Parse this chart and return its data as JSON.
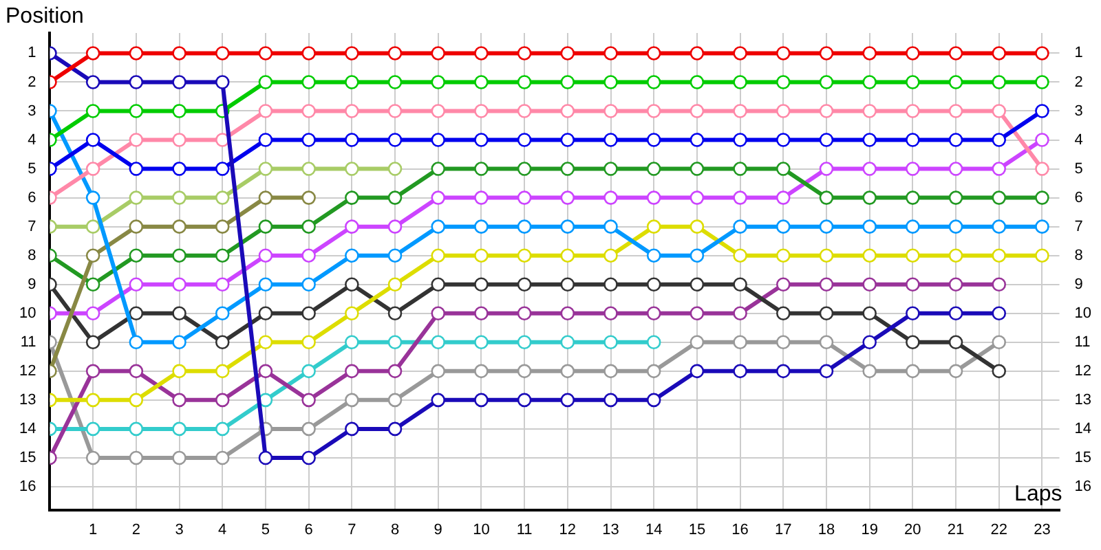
{
  "chart_data": {
    "type": "line",
    "xlabel": "Laps",
    "ylabel": "Position",
    "x": [
      0,
      1,
      2,
      3,
      4,
      5,
      6,
      7,
      8,
      9,
      10,
      11,
      12,
      13,
      14,
      15,
      16,
      17,
      18,
      19,
      20,
      21,
      22,
      23
    ],
    "xlim": [
      0,
      23.4
    ],
    "xticks": [
      1,
      2,
      3,
      4,
      5,
      6,
      7,
      8,
      9,
      10,
      11,
      12,
      13,
      14,
      15,
      16,
      17,
      18,
      19,
      20,
      21,
      22,
      23
    ],
    "ylim": [
      16.8,
      0.3
    ],
    "yticks": [
      1,
      2,
      3,
      4,
      5,
      6,
      7,
      8,
      9,
      10,
      11,
      12,
      13,
      14,
      15,
      16
    ],
    "y2lim": [
      16.8,
      0.3
    ],
    "y2ticks": [
      1,
      2,
      3,
      4,
      5,
      6,
      7,
      8,
      9,
      10,
      11,
      12,
      13,
      14,
      15,
      16
    ],
    "grid": true,
    "legend": false,
    "marker": "circle",
    "line_style": "solid",
    "series": [
      {
        "color": "#ee0000",
        "values": [
          2,
          1,
          1,
          1,
          1,
          1,
          1,
          1,
          1,
          1,
          1,
          1,
          1,
          1,
          1,
          1,
          1,
          1,
          1,
          1,
          1,
          1,
          1,
          1
        ]
      },
      {
        "color": "#1a0ab8",
        "values": [
          1,
          2,
          2,
          2,
          2,
          15,
          15,
          14,
          14,
          13,
          13,
          13,
          13,
          13,
          13,
          12,
          12,
          12,
          12,
          11,
          10,
          10,
          10,
          null
        ]
      },
      {
        "color": "#00cc00",
        "values": [
          4,
          3,
          3,
          3,
          3,
          2,
          2,
          2,
          2,
          2,
          2,
          2,
          2,
          2,
          2,
          2,
          2,
          2,
          2,
          2,
          2,
          2,
          2,
          2
        ]
      },
      {
        "color": "#0000ee",
        "values": [
          5,
          4,
          5,
          5,
          5,
          4,
          4,
          4,
          4,
          4,
          4,
          4,
          4,
          4,
          4,
          4,
          4,
          4,
          4,
          4,
          4,
          4,
          4,
          3
        ]
      },
      {
        "color": "#ff88a8",
        "values": [
          6,
          5,
          4,
          4,
          4,
          3,
          3,
          3,
          3,
          3,
          3,
          3,
          3,
          3,
          3,
          3,
          3,
          3,
          3,
          3,
          3,
          3,
          3,
          5
        ]
      },
      {
        "color": "#0099ff",
        "values": [
          3,
          6,
          11,
          11,
          10,
          9,
          9,
          8,
          8,
          7,
          7,
          7,
          7,
          7,
          8,
          8,
          7,
          7,
          7,
          7,
          7,
          7,
          7,
          7
        ]
      },
      {
        "color": "#dddd00",
        "values": [
          13,
          13,
          13,
          12,
          12,
          11,
          11,
          10,
          9,
          8,
          8,
          8,
          8,
          8,
          7,
          7,
          8,
          8,
          8,
          8,
          8,
          8,
          8,
          8
        ]
      },
      {
        "color": "#a8cc66",
        "values": [
          7,
          7,
          6,
          6,
          6,
          5,
          5,
          5,
          5,
          null,
          null,
          null,
          null,
          null,
          null,
          null,
          null,
          null,
          null,
          null,
          null,
          null,
          null,
          null
        ]
      },
      {
        "color": "#888844",
        "values": [
          12,
          8,
          7,
          7,
          7,
          6,
          6,
          null,
          null,
          null,
          null,
          null,
          null,
          null,
          null,
          null,
          null,
          null,
          null,
          null,
          null,
          null,
          null,
          null
        ]
      },
      {
        "color": "#229922",
        "values": [
          8,
          9,
          8,
          8,
          8,
          7,
          7,
          6,
          6,
          5,
          5,
          5,
          5,
          5,
          5,
          5,
          5,
          5,
          6,
          6,
          6,
          6,
          6,
          6
        ]
      },
      {
        "color": "#cc44ff",
        "values": [
          10,
          10,
          9,
          9,
          9,
          8,
          8,
          7,
          7,
          6,
          6,
          6,
          6,
          6,
          6,
          6,
          6,
          6,
          5,
          5,
          5,
          5,
          5,
          4
        ]
      },
      {
        "color": "#333333",
        "values": [
          9,
          11,
          10,
          10,
          11,
          10,
          10,
          9,
          10,
          9,
          9,
          9,
          9,
          9,
          9,
          9,
          9,
          10,
          10,
          10,
          11,
          11,
          12,
          null
        ]
      },
      {
        "color": "#993399",
        "values": [
          15,
          12,
          12,
          13,
          13,
          12,
          13,
          12,
          12,
          10,
          10,
          10,
          10,
          10,
          10,
          10,
          10,
          9,
          9,
          9,
          9,
          9,
          9,
          null
        ]
      },
      {
        "color": "#33cccc",
        "values": [
          14,
          14,
          14,
          14,
          14,
          13,
          12,
          11,
          11,
          11,
          11,
          11,
          11,
          11,
          11,
          null,
          null,
          null,
          null,
          null,
          null,
          null,
          null,
          null
        ]
      },
      {
        "color": "#999999",
        "values": [
          11,
          15,
          15,
          15,
          15,
          14,
          14,
          13,
          13,
          12,
          12,
          12,
          12,
          12,
          12,
          11,
          11,
          11,
          11,
          12,
          12,
          12,
          11,
          null
        ]
      }
    ]
  }
}
